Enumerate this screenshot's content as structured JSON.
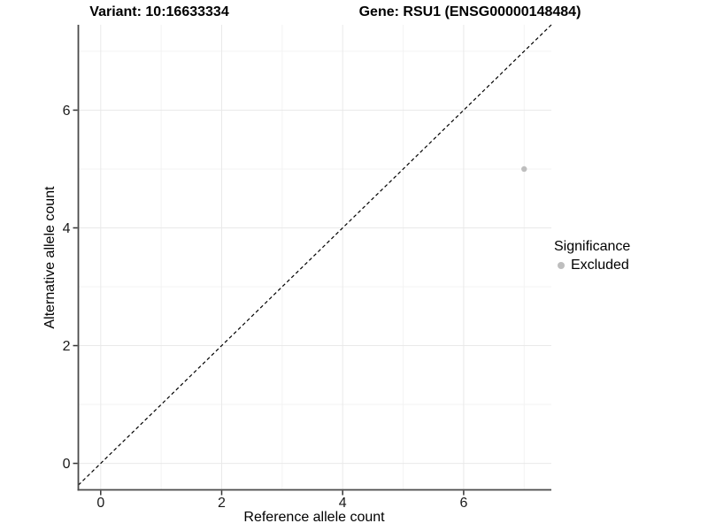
{
  "titles": {
    "variant": "Variant: 10:16633334",
    "gene": "Gene: RSU1 (ENSG00000148484)"
  },
  "chart_data": {
    "type": "scatter",
    "xlabel": "Reference allele count",
    "ylabel": "Alternative allele count",
    "xlim": [
      -0.37,
      7.45
    ],
    "ylim": [
      -0.45,
      7.45
    ],
    "x_ticks": [
      0,
      2,
      4,
      6
    ],
    "y_ticks": [
      0,
      2,
      4,
      6
    ],
    "x_minor": [
      1,
      3,
      5,
      7
    ],
    "y_minor": [
      1,
      3,
      5,
      7
    ],
    "grid": "major+minor",
    "points": [
      {
        "x": 7,
        "y": 5,
        "series": "Excluded",
        "color": "#bebebe"
      }
    ],
    "reference_line": {
      "type": "y=x",
      "style": "dashed",
      "color": "#000000"
    },
    "legend": {
      "title": "Significance",
      "position": "right",
      "items": [
        {
          "label": "Excluded",
          "color": "#bebebe"
        }
      ]
    }
  },
  "colors": {
    "background": "#ffffff",
    "axis_line": "#4a4a4a",
    "tick_mark": "#333333",
    "tick_text": "#1a1a1a",
    "grid_major": "#e9e9e9",
    "grid_minor": "#f3f3f3",
    "point": "#bebebe"
  }
}
